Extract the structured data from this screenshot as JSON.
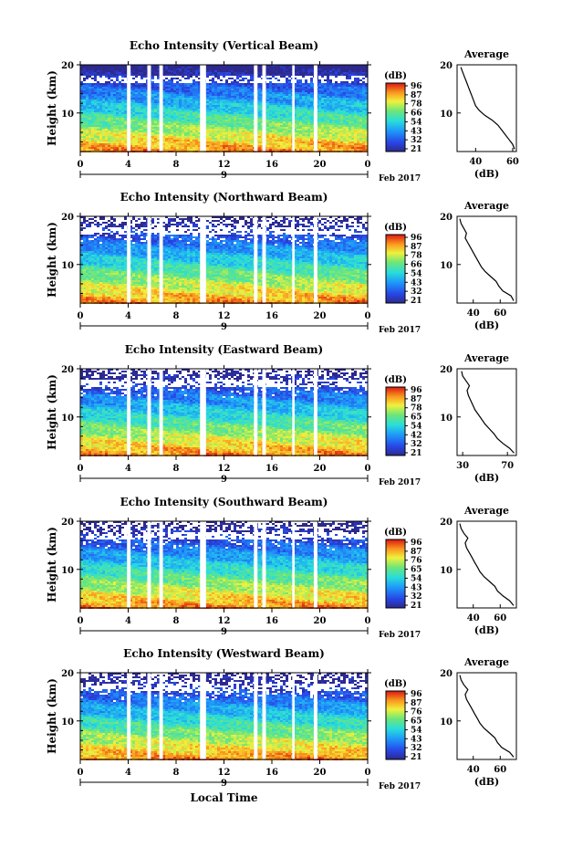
{
  "figure": {
    "x_axis_label": "Local Time",
    "date_label": "Feb 2017",
    "day_label": "9",
    "unit_label": "(dB)",
    "average_title": "Average"
  },
  "chart_data": [
    {
      "type": "heatmap",
      "title": "Echo Intensity (Vertical Beam)",
      "ylabel": "Height (km)",
      "xlabel": "Local Time",
      "x_ticks": [
        "0",
        "4",
        "8",
        "12",
        "16",
        "20",
        "0"
      ],
      "y_ticks": [
        "20",
        "10"
      ],
      "xlim": [
        0,
        24
      ],
      "ylim": [
        2,
        20
      ],
      "colorbar": {
        "label": "(dB)",
        "ticks": [
          "96",
          "87",
          "78",
          "66",
          "54",
          "43",
          "32",
          "21"
        ]
      },
      "data_gaps_hours": [
        [
          3.9,
          4.2
        ],
        [
          5.6,
          5.9
        ],
        [
          6.6,
          6.9
        ],
        [
          10.0,
          10.5
        ],
        [
          14.5,
          14.8
        ],
        [
          15.2,
          15.5
        ],
        [
          17.7,
          17.9
        ],
        [
          19.5,
          19.8
        ]
      ],
      "profile": {
        "title": "Average",
        "xlabel": "(dB)",
        "x_ticks": [
          "40",
          "60"
        ],
        "y_ticks": [
          "20",
          "10"
        ],
        "xlim": [
          30,
          62
        ],
        "height_km": [
          2.5,
          3.5,
          4.5,
          5.5,
          6.5,
          7.5,
          8.5,
          9.5,
          10.5,
          11.5,
          12.5,
          13.5,
          14.5,
          15.5,
          16.5,
          17.5,
          18.5,
          19.5
        ],
        "mean_db": [
          61,
          60,
          58,
          56,
          54,
          52,
          49,
          45,
          42,
          40,
          39,
          38,
          37,
          36,
          35,
          34,
          33,
          32
        ]
      }
    },
    {
      "type": "heatmap",
      "title": "Echo Intensity (Northward Beam)",
      "ylabel": "Height (km)",
      "xlabel": "Local Time",
      "x_ticks": [
        "0",
        "4",
        "8",
        "12",
        "16",
        "20",
        "0"
      ],
      "y_ticks": [
        "20",
        "10"
      ],
      "xlim": [
        0,
        24
      ],
      "ylim": [
        2,
        20
      ],
      "colorbar": {
        "label": "(dB)",
        "ticks": [
          "96",
          "87",
          "78",
          "66",
          "54",
          "43",
          "32",
          "21"
        ]
      },
      "data_gaps_hours": [
        [
          3.9,
          4.2
        ],
        [
          5.6,
          5.9
        ],
        [
          6.6,
          6.9
        ],
        [
          10.0,
          10.5
        ],
        [
          14.5,
          14.8
        ],
        [
          15.2,
          15.5
        ],
        [
          17.7,
          17.9
        ],
        [
          19.5,
          19.8
        ]
      ],
      "profile": {
        "title": "Average",
        "xlabel": "(dB)",
        "x_ticks": [
          "40",
          "60"
        ],
        "y_ticks": [
          "20",
          "10"
        ],
        "xlim": [
          28,
          72
        ],
        "height_km": [
          2.5,
          3.5,
          4.5,
          5.5,
          6.5,
          7.5,
          8.5,
          9.5,
          10.5,
          11.5,
          12.5,
          13.5,
          14.5,
          15.5,
          16.5,
          17.5,
          18.5,
          19.5
        ],
        "mean_db": [
          70,
          68,
          62,
          59,
          57,
          53,
          49,
          46,
          44,
          42,
          40,
          38,
          36,
          34,
          35,
          33,
          31,
          30
        ]
      }
    },
    {
      "type": "heatmap",
      "title": "Echo Intensity (Eastward Beam)",
      "ylabel": "Height (km)",
      "xlabel": "Local Time",
      "x_ticks": [
        "0",
        "4",
        "8",
        "12",
        "16",
        "20",
        "0"
      ],
      "y_ticks": [
        "20",
        "10"
      ],
      "xlim": [
        0,
        24
      ],
      "ylim": [
        2,
        20
      ],
      "colorbar": {
        "label": "(dB)",
        "ticks": [
          "96",
          "87",
          "78",
          "65",
          "54",
          "42",
          "32",
          "21"
        ]
      },
      "data_gaps_hours": [
        [
          3.9,
          4.2
        ],
        [
          5.6,
          5.9
        ],
        [
          6.6,
          6.9
        ],
        [
          10.0,
          10.5
        ],
        [
          14.5,
          14.8
        ],
        [
          15.2,
          15.5
        ],
        [
          17.7,
          17.9
        ],
        [
          19.5,
          19.8
        ]
      ],
      "profile": {
        "title": "Average",
        "xlabel": "(dB)",
        "x_ticks": [
          "30",
          "70"
        ],
        "y_ticks": [
          "20",
          "10"
        ],
        "xlim": [
          25,
          78
        ],
        "height_km": [
          2.5,
          3.5,
          4.5,
          5.5,
          6.5,
          7.5,
          8.5,
          9.5,
          10.5,
          11.5,
          12.5,
          13.5,
          14.5,
          15.5,
          16.5,
          17.5,
          18.5,
          19.5
        ],
        "mean_db": [
          76,
          72,
          66,
          61,
          58,
          54,
          50,
          47,
          44,
          41,
          39,
          37,
          35,
          34,
          36,
          33,
          30,
          29
        ]
      }
    },
    {
      "type": "heatmap",
      "title": "Echo Intensity (Southward Beam)",
      "ylabel": "Height (km)",
      "xlabel": "Local Time",
      "x_ticks": [
        "0",
        "4",
        "8",
        "12",
        "16",
        "20",
        "0"
      ],
      "y_ticks": [
        "20",
        "10"
      ],
      "xlim": [
        0,
        24
      ],
      "ylim": [
        2,
        20
      ],
      "colorbar": {
        "label": "(dB)",
        "ticks": [
          "96",
          "87",
          "76",
          "65",
          "54",
          "43",
          "32",
          "21"
        ]
      },
      "data_gaps_hours": [
        [
          3.9,
          4.2
        ],
        [
          5.6,
          5.9
        ],
        [
          6.6,
          6.9
        ],
        [
          10.0,
          10.5
        ],
        [
          14.5,
          14.8
        ],
        [
          15.2,
          15.5
        ],
        [
          17.7,
          17.9
        ],
        [
          19.5,
          19.8
        ]
      ],
      "profile": {
        "title": "Average",
        "xlabel": "(dB)",
        "x_ticks": [
          "40",
          "60"
        ],
        "y_ticks": [
          "20",
          "10"
        ],
        "xlim": [
          28,
          72
        ],
        "height_km": [
          2.5,
          3.5,
          4.5,
          5.5,
          6.5,
          7.5,
          8.5,
          9.5,
          10.5,
          11.5,
          12.5,
          13.5,
          14.5,
          15.5,
          16.5,
          17.5,
          18.5,
          19.5
        ],
        "mean_db": [
          70,
          67,
          62,
          58,
          56,
          52,
          48,
          45,
          43,
          41,
          39,
          37,
          35,
          34,
          36,
          33,
          31,
          30
        ]
      }
    },
    {
      "type": "heatmap",
      "title": "Echo Intensity (Westward Beam)",
      "ylabel": "Height (km)",
      "xlabel": "Local Time",
      "x_ticks": [
        "0",
        "4",
        "8",
        "12",
        "16",
        "20",
        "0"
      ],
      "y_ticks": [
        "20",
        "10"
      ],
      "xlim": [
        0,
        24
      ],
      "ylim": [
        2,
        20
      ],
      "colorbar": {
        "label": "(dB)",
        "ticks": [
          "96",
          "87",
          "76",
          "65",
          "54",
          "43",
          "32",
          "21"
        ]
      },
      "data_gaps_hours": [
        [
          3.9,
          4.2
        ],
        [
          5.6,
          5.9
        ],
        [
          6.6,
          6.9
        ],
        [
          10.0,
          10.5
        ],
        [
          14.5,
          14.8
        ],
        [
          15.2,
          15.5
        ],
        [
          17.7,
          17.9
        ],
        [
          19.5,
          19.8
        ]
      ],
      "profile": {
        "title": "Average",
        "xlabel": "(dB)",
        "x_ticks": [
          "40",
          "60"
        ],
        "y_ticks": [
          "20",
          "10"
        ],
        "xlim": [
          28,
          72
        ],
        "height_km": [
          2.5,
          3.5,
          4.5,
          5.5,
          6.5,
          7.5,
          8.5,
          9.5,
          10.5,
          11.5,
          12.5,
          13.5,
          14.5,
          15.5,
          16.5,
          17.5,
          18.5,
          19.5
        ],
        "mean_db": [
          70,
          67,
          61,
          58,
          56,
          52,
          48,
          45,
          43,
          41,
          39,
          37,
          35,
          34,
          36,
          33,
          31,
          30
        ]
      }
    }
  ]
}
